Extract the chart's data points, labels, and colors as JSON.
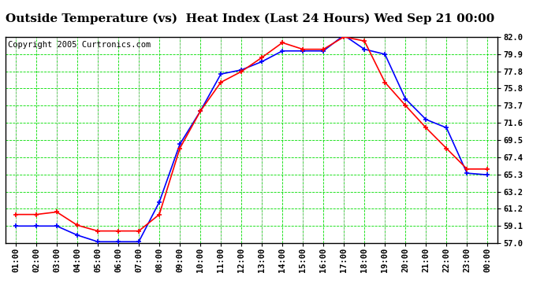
{
  "title": "Outside Temperature (vs)  Heat Index (Last 24 Hours) Wed Sep 21 00:00",
  "copyright": "Copyright 2005 Curtronics.com",
  "background_color": "#ffffff",
  "plot_bg_color": "#ffffff",
  "grid_green": "#00dd00",
  "grid_grey": "#aaaaaa",
  "x_labels": [
    "01:00",
    "02:00",
    "03:00",
    "04:00",
    "05:00",
    "06:00",
    "07:00",
    "08:00",
    "09:00",
    "10:00",
    "11:00",
    "12:00",
    "13:00",
    "14:00",
    "15:00",
    "16:00",
    "17:00",
    "18:00",
    "19:00",
    "20:00",
    "21:00",
    "22:00",
    "23:00",
    "00:00"
  ],
  "y_ticks": [
    57.0,
    59.1,
    61.2,
    63.2,
    65.3,
    67.4,
    69.5,
    71.6,
    73.7,
    75.8,
    77.8,
    79.9,
    82.0
  ],
  "ylim": [
    57.0,
    82.0
  ],
  "outside_temp": [
    60.5,
    60.5,
    60.8,
    59.2,
    58.5,
    58.5,
    58.5,
    60.5,
    68.5,
    73.0,
    76.5,
    77.8,
    79.5,
    81.3,
    80.5,
    80.5,
    82.0,
    81.5,
    76.5,
    73.7,
    71.0,
    68.5,
    66.0,
    66.0
  ],
  "heat_index": [
    59.1,
    59.1,
    59.1,
    58.0,
    57.2,
    57.2,
    57.2,
    62.0,
    69.0,
    73.0,
    77.5,
    78.0,
    79.0,
    80.3,
    80.3,
    80.3,
    82.2,
    80.5,
    79.9,
    74.5,
    72.0,
    71.0,
    65.5,
    65.3
  ],
  "temp_color": "#ff0000",
  "heat_color": "#0000ff",
  "line_width": 1.2,
  "marker": "+",
  "markersize": 5,
  "markeredgewidth": 1.2,
  "title_fontsize": 11,
  "tick_fontsize": 7.5,
  "copyright_fontsize": 7.5
}
